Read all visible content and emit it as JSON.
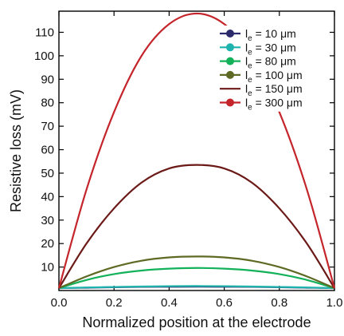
{
  "chart_data": {
    "type": "line",
    "title": "",
    "xlabel": "Normalized position at the electrode",
    "ylabel": "Resistive loss (mV)",
    "xlim": [
      0.0,
      1.0
    ],
    "ylim": [
      0,
      119
    ],
    "xticks": [
      0.0,
      0.2,
      0.4,
      0.6,
      0.8,
      1.0
    ],
    "xtick_labels": [
      "0.0",
      "0.2",
      "0.4",
      "0.6",
      "0.8",
      "1.0"
    ],
    "yticks": [
      10,
      20,
      30,
      40,
      50,
      60,
      70,
      80,
      90,
      100,
      110
    ],
    "ytick_labels": [
      "10",
      "20",
      "30",
      "40",
      "50",
      "60",
      "70",
      "80",
      "90",
      "100",
      "110"
    ],
    "grid": false,
    "legend_position": "top-right",
    "x": [
      0.0,
      0.1,
      0.2,
      0.3,
      0.4,
      0.5,
      0.6,
      0.7,
      0.8,
      0.9,
      1.0
    ],
    "series": [
      {
        "name_main": "l",
        "name_sub": "e",
        "name_rest": " = 10 μm",
        "color": "#2b2a6b",
        "marker": true,
        "values": [
          1.0,
          1.2,
          1.4,
          1.55,
          1.6,
          1.65,
          1.6,
          1.55,
          1.4,
          1.2,
          1.0
        ]
      },
      {
        "name_main": "l",
        "name_sub": "e",
        "name_rest": " = 30 μm",
        "color": "#1fb3ad",
        "marker": true,
        "values": [
          1.0,
          1.3,
          1.5,
          1.7,
          1.85,
          1.9,
          1.85,
          1.7,
          1.5,
          1.3,
          1.0
        ]
      },
      {
        "name_main": "l",
        "name_sub": "e",
        "name_rest": " = 80 μm",
        "color": "#12b15a",
        "marker": true,
        "values": [
          1.0,
          4.5,
          7.0,
          8.5,
          9.3,
          9.6,
          9.3,
          8.5,
          7.0,
          4.5,
          1.0
        ]
      },
      {
        "name_main": "l",
        "name_sub": "e",
        "name_rest": " = 100 μm",
        "color": "#5e6a24",
        "marker": true,
        "values": [
          1.0,
          6.0,
          10.0,
          12.7,
          14.1,
          14.5,
          14.1,
          12.7,
          10.0,
          6.0,
          1.0
        ]
      },
      {
        "name_main": "l",
        "name_sub": "e",
        "name_rest": " = 150 μm",
        "color": "#6b1a17",
        "marker": false,
        "values": [
          1.0,
          20.0,
          35.0,
          46.0,
          52.0,
          53.5,
          52.0,
          46.0,
          35.0,
          20.0,
          1.0
        ]
      },
      {
        "name_main": "l",
        "name_sub": "e",
        "name_rest": " = 300 μm",
        "color": "#c4252b",
        "marker": true,
        "values": [
          1.0,
          43.0,
          76.0,
          100.0,
          113.5,
          118.0,
          113.5,
          100.0,
          76.0,
          43.0,
          1.0
        ]
      }
    ]
  }
}
